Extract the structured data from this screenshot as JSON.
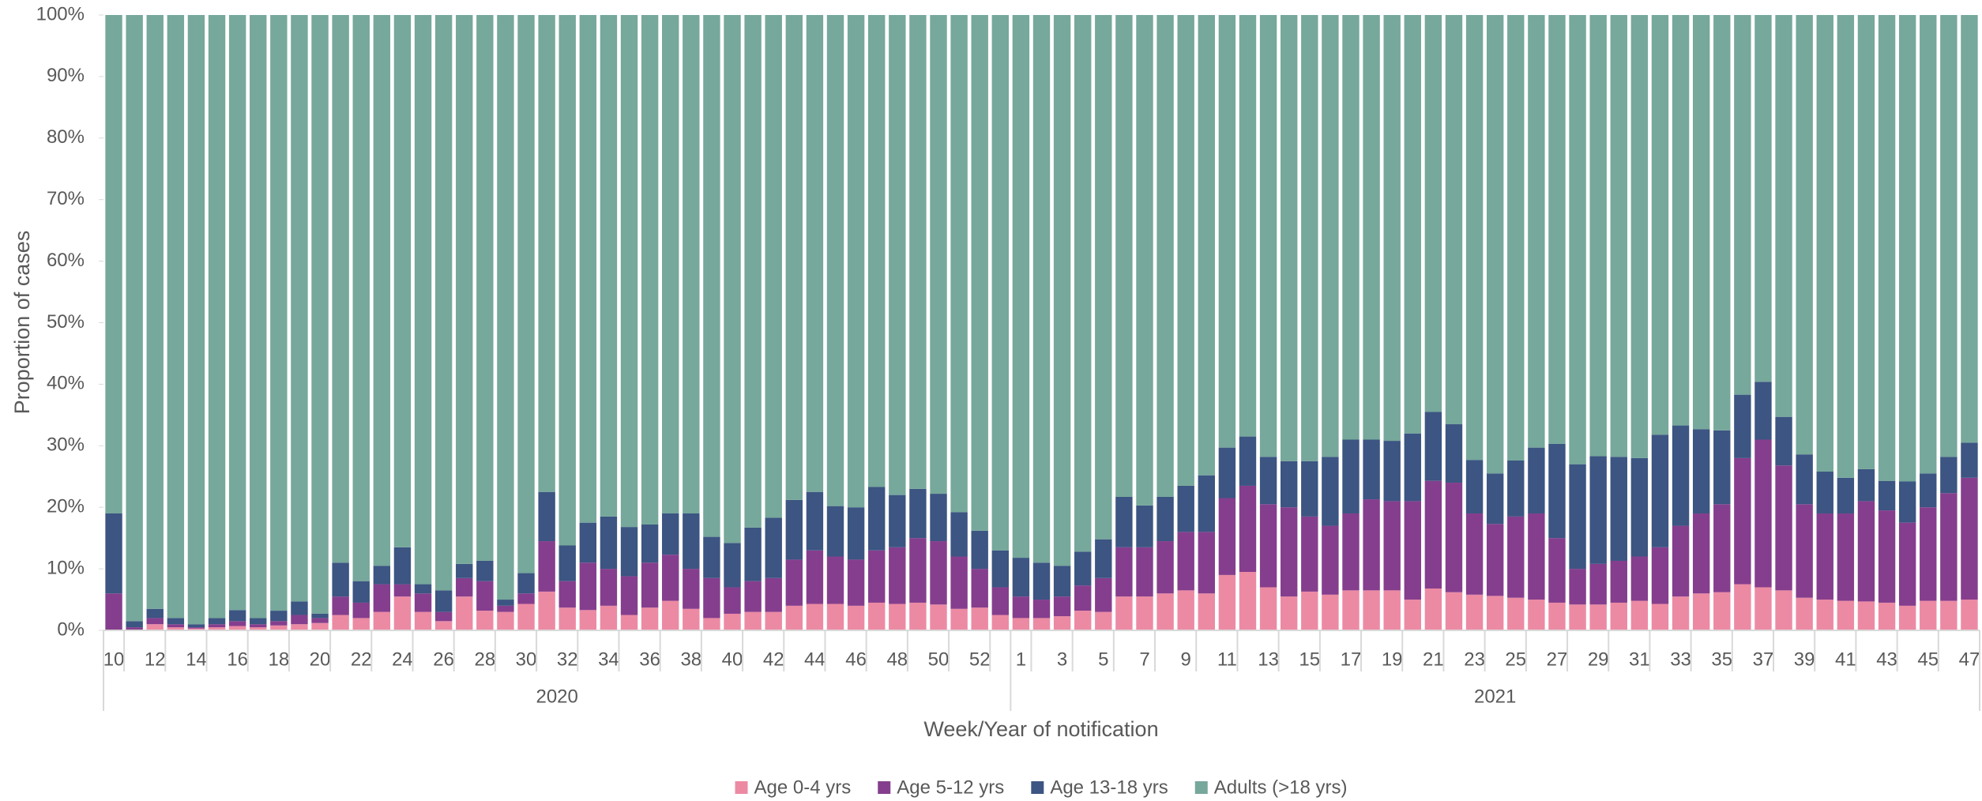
{
  "chart_data": {
    "type": "stacked_bar_100",
    "y_label": "Proportion of cases",
    "x_label": "Week/Year of notification",
    "ylim": [
      0,
      100
    ],
    "yticks": [
      {
        "value": 0,
        "label": "0%"
      },
      {
        "value": 10,
        "label": "10%"
      },
      {
        "value": 20,
        "label": "20%"
      },
      {
        "value": 30,
        "label": "30%"
      },
      {
        "value": 40,
        "label": "40%"
      },
      {
        "value": 50,
        "label": "50%"
      },
      {
        "value": 60,
        "label": "60%"
      },
      {
        "value": 70,
        "label": "70%"
      },
      {
        "value": 80,
        "label": "80%"
      },
      {
        "value": 90,
        "label": "90%"
      },
      {
        "value": 100,
        "label": "100%"
      }
    ],
    "categories": [
      "10",
      null,
      "12",
      null,
      "14",
      null,
      "16",
      null,
      "18",
      null,
      "20",
      null,
      "22",
      null,
      "24",
      null,
      "26",
      null,
      "28",
      null,
      "30",
      null,
      "32",
      null,
      "34",
      null,
      "36",
      null,
      "38",
      null,
      "40",
      null,
      "42",
      null,
      "44",
      null,
      "46",
      null,
      "48",
      null,
      "50",
      null,
      "52",
      null,
      "1",
      null,
      "3",
      null,
      "5",
      null,
      "7",
      null,
      "9",
      null,
      "11",
      null,
      "13",
      null,
      "15",
      null,
      "17",
      null,
      "19",
      null,
      "21",
      null,
      "23",
      null,
      "25",
      null,
      "27",
      null,
      "29",
      null,
      "31",
      null,
      "33",
      null,
      "35",
      null,
      "37",
      null,
      "39",
      null,
      "41",
      null,
      "43",
      null,
      "45",
      null,
      "47"
    ],
    "category_groups": [
      {
        "label": "2020",
        "size": 44
      },
      {
        "label": "2021",
        "size": 47
      }
    ],
    "legend": "bottom",
    "series": [
      {
        "name": "Age 0-4 yrs",
        "color": "#ec8aa4",
        "values": [
          0,
          0,
          1,
          0.5,
          0.3,
          0.5,
          0.7,
          0.5,
          0.8,
          1,
          1.2,
          2.5,
          2,
          3,
          5.5,
          3,
          1.5,
          5.5,
          3.2,
          3,
          4.3,
          6.3,
          3.7,
          3.3,
          4,
          2.5,
          3.7,
          4.8,
          3.5,
          2,
          2.7,
          3,
          3,
          4,
          4.3,
          4.3,
          4,
          4.5,
          4.3,
          4.5,
          4.2,
          3.5,
          3.7,
          2.5,
          2,
          2,
          2.3,
          3.2,
          3,
          5.5,
          5.5,
          6,
          6.5,
          6,
          9,
          9.5,
          7,
          5.5,
          6.3,
          5.8,
          6.5,
          6.5,
          6.5,
          5,
          6.8,
          6.2,
          5.8,
          5.6,
          5.3,
          5,
          4.5,
          4.2,
          4.2,
          4.5,
          4.8,
          4.3,
          5.5,
          6,
          6.2,
          7.5,
          7,
          6.5,
          5.3,
          5,
          4.8,
          4.7,
          4.5,
          4,
          4.8,
          4.8,
          5
        ]
      },
      {
        "name": "Age 5-12 yrs",
        "color": "#853e8d",
        "values": [
          6,
          0.5,
          1,
          0.5,
          0.2,
          0.5,
          0.8,
          0.5,
          0.7,
          1.5,
          0.8,
          3,
          2.5,
          4.5,
          2,
          3,
          1.5,
          3,
          4.8,
          1,
          1.7,
          8.2,
          4.3,
          7.7,
          6,
          6.3,
          7.3,
          7.5,
          6.5,
          6.5,
          4.3,
          5,
          5.5,
          7.5,
          8.7,
          7.7,
          7.5,
          8.5,
          9.2,
          10.5,
          10.3,
          8.5,
          6.3,
          4.5,
          3.5,
          3,
          3.2,
          4.1,
          5.5,
          8,
          8,
          8.5,
          9.5,
          10,
          12.5,
          14,
          13.5,
          14.5,
          12.2,
          11.2,
          12.5,
          14.8,
          14.5,
          16,
          17.5,
          17.8,
          13.2,
          11.7,
          13.2,
          14,
          10.5,
          5.8,
          6.6,
          6.8,
          7.2,
          9.2,
          11.5,
          13,
          14.3,
          20.5,
          24,
          20.3,
          15.2,
          14,
          14.2,
          16.3,
          15,
          13.5,
          15.2,
          17.5,
          19.8
        ]
      },
      {
        "name": "Age 13-18 yrs",
        "color": "#3c5582",
        "values": [
          13,
          1,
          1.5,
          1,
          0.5,
          1,
          1.8,
          1,
          1.7,
          2.2,
          0.7,
          5.5,
          3.5,
          3,
          6,
          1.5,
          3.5,
          2.3,
          3.3,
          1,
          3.3,
          8,
          5.8,
          6.5,
          8.5,
          8,
          6.2,
          6.7,
          9,
          6.7,
          7.2,
          8.7,
          9.8,
          9.7,
          9.5,
          8.2,
          8.5,
          10.3,
          8.5,
          8,
          7.7,
          7.2,
          6.2,
          6,
          6.3,
          6,
          5,
          5.5,
          6.3,
          8.2,
          6.8,
          7.2,
          7.5,
          9.2,
          8.2,
          8,
          7.7,
          7.5,
          9,
          11.2,
          12,
          9.7,
          9.8,
          11,
          11.2,
          9.5,
          8.7,
          8.2,
          9.1,
          10.7,
          15.3,
          17,
          17.5,
          16.9,
          16,
          18.3,
          16.3,
          13.7,
          12,
          10.3,
          9.4,
          7.9,
          8.1,
          6.8,
          5.8,
          5.2,
          4.8,
          6.7,
          5.5,
          5.9,
          5.7
        ]
      },
      {
        "name": "Adults (>18 yrs)",
        "color": "#76a89b",
        "values": [
          81,
          98.5,
          96.5,
          98,
          99,
          98,
          96.7,
          98,
          96.8,
          95.3,
          97.3,
          89,
          92,
          89.5,
          86.5,
          92.5,
          93.5,
          89.2,
          88.7,
          95,
          90.7,
          77.5,
          86.2,
          82.5,
          81.5,
          83.2,
          82.8,
          81,
          81,
          84.8,
          85.8,
          83.3,
          81.7,
          78.8,
          77.5,
          79.8,
          80,
          76.7,
          78,
          77,
          77.8,
          80.8,
          83.8,
          87,
          88.2,
          89,
          89.5,
          87.2,
          85.2,
          78.3,
          79.7,
          78.3,
          76.5,
          74.8,
          70.3,
          68.5,
          71.8,
          72.5,
          72.5,
          71.8,
          69,
          69,
          69.2,
          68,
          64.5,
          66.5,
          72.3,
          74.5,
          72.4,
          70.3,
          69.7,
          73,
          71.7,
          71.8,
          72,
          68.2,
          66.7,
          67.3,
          67.5,
          61.7,
          59.6,
          65.3,
          71.4,
          74.2,
          75.2,
          73.8,
          75.7,
          75.8,
          74.5,
          71.8,
          69.5
        ]
      }
    ]
  }
}
